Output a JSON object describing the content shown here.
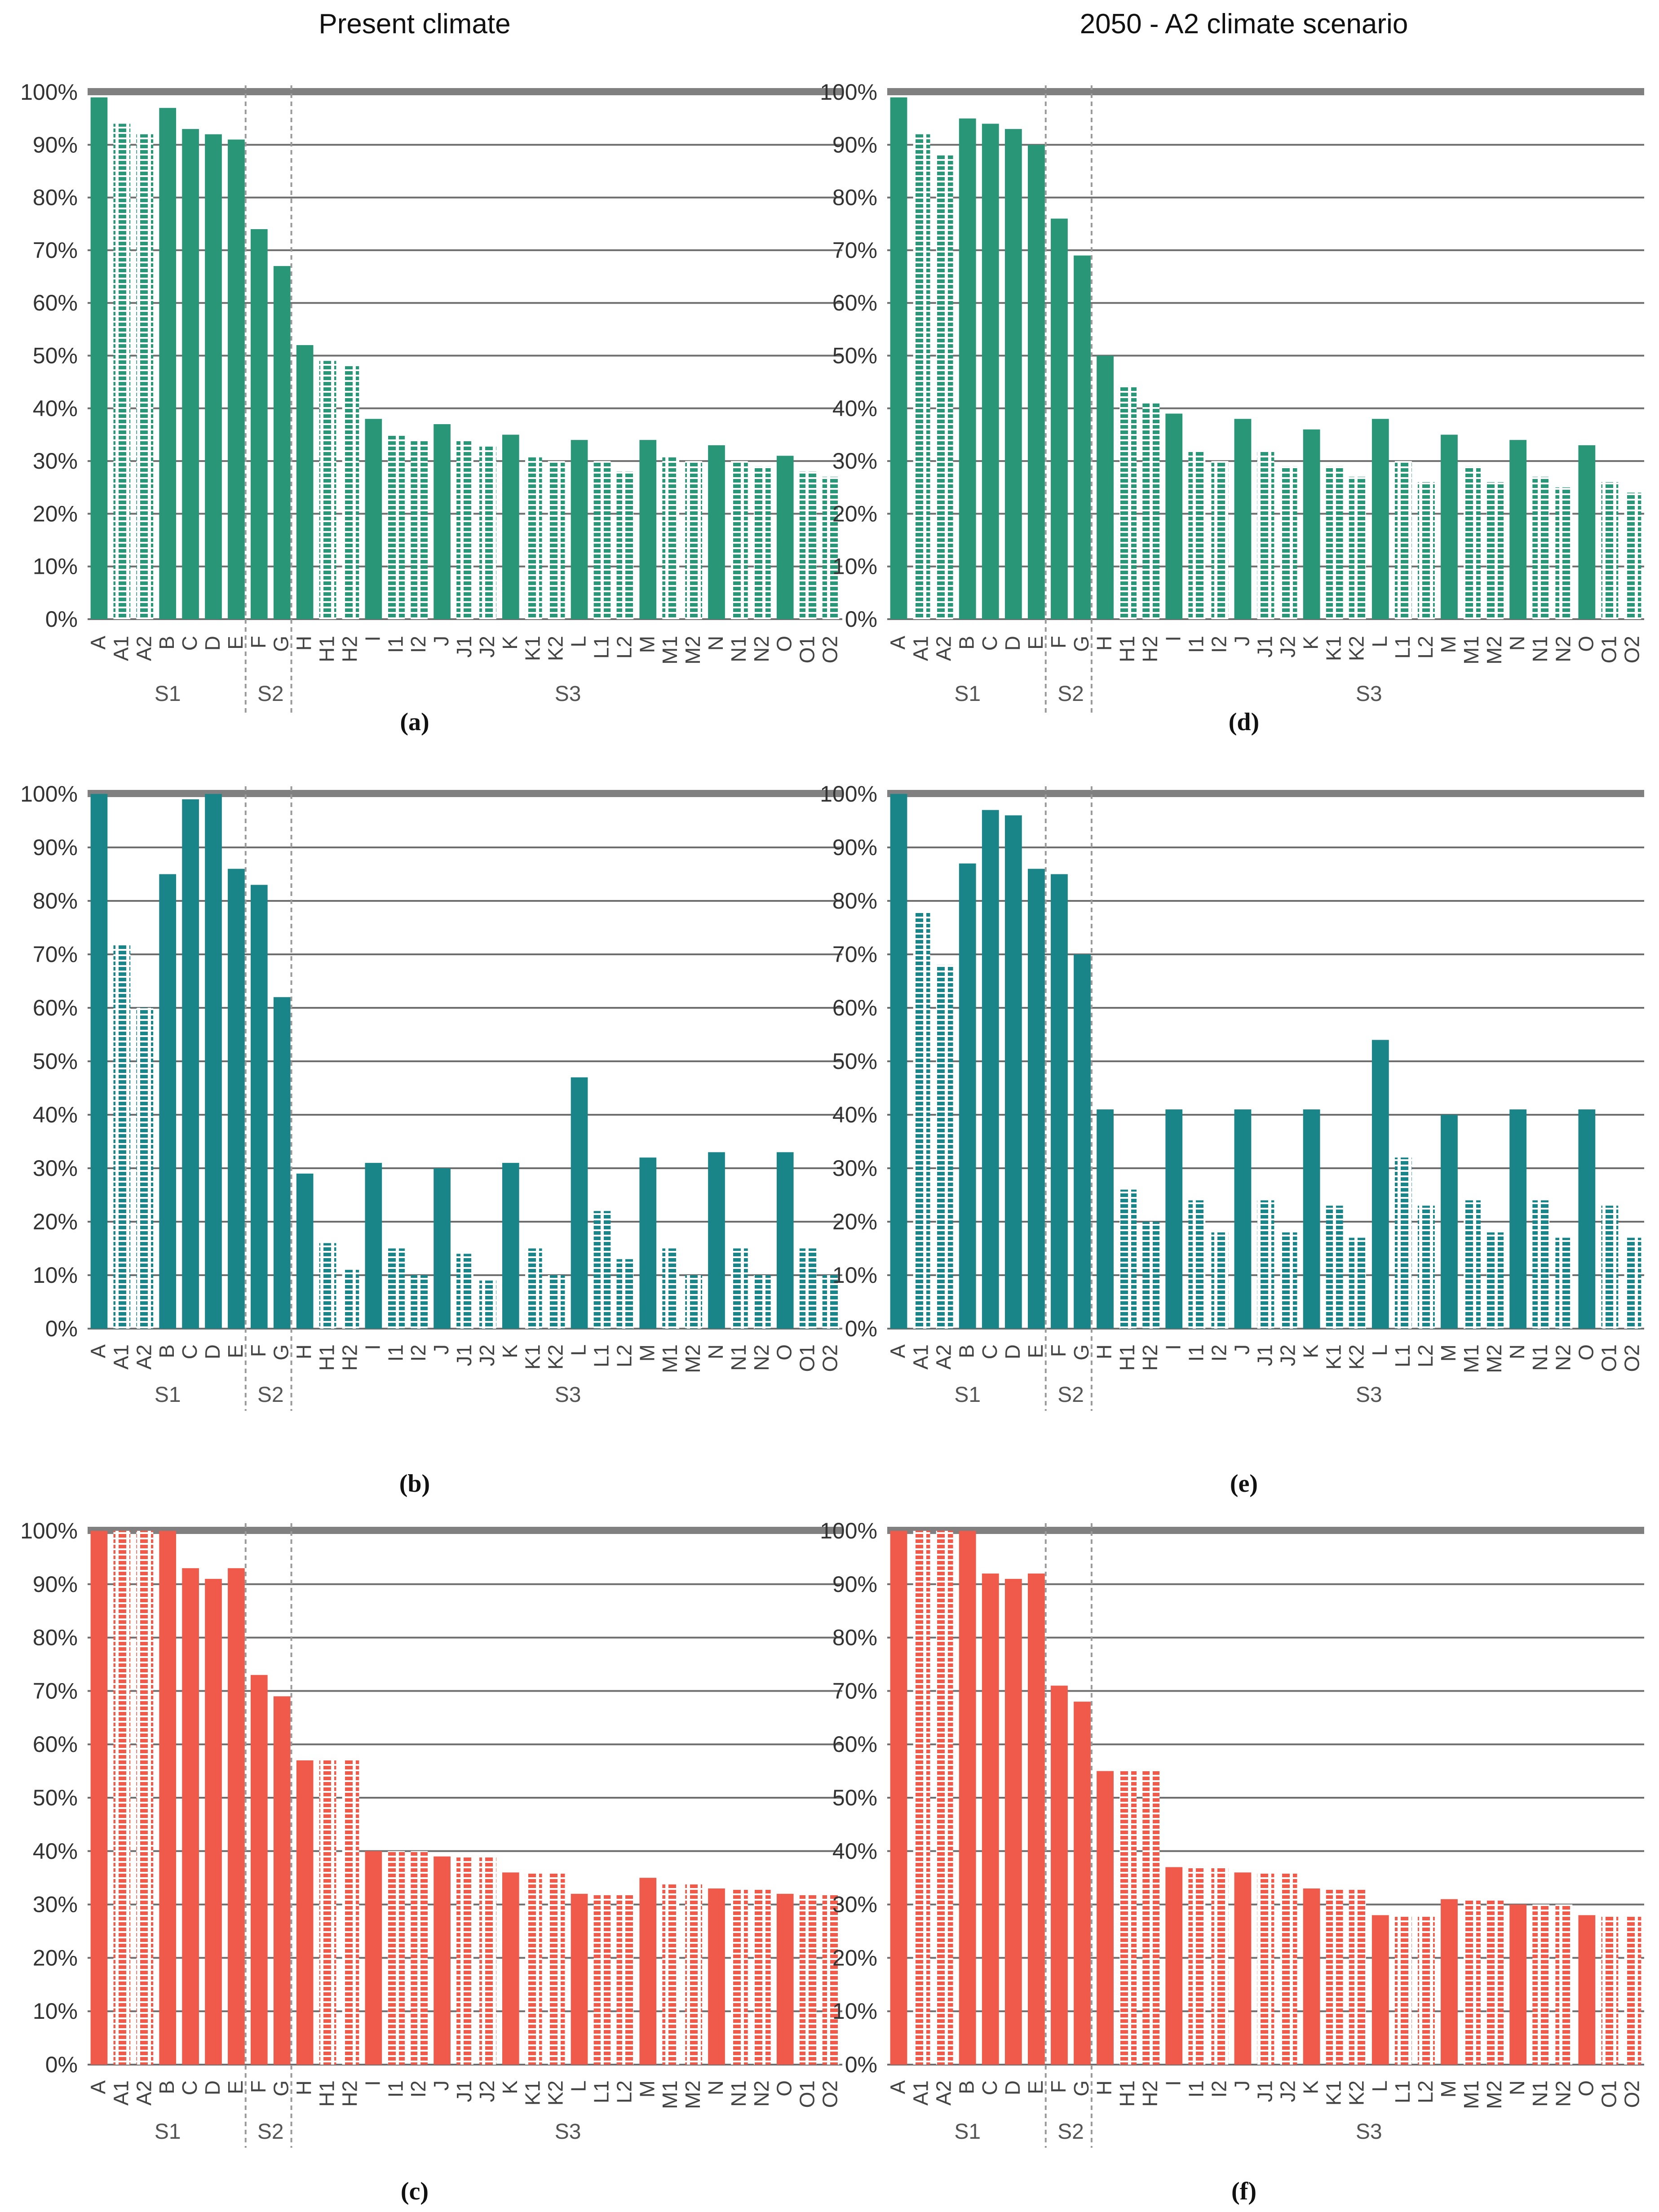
{
  "figure": {
    "column_titles": [
      "Present climate",
      "2050 - A2 climate scenario"
    ]
  },
  "categories": [
    "A",
    "A1",
    "A2",
    "B",
    "C",
    "D",
    "E",
    "F",
    "G",
    "H",
    "H1",
    "H2",
    "I",
    "I1",
    "I2",
    "J",
    "J1",
    "J2",
    "K",
    "K1",
    "K2",
    "L",
    "L1",
    "L2",
    "M",
    "M1",
    "M2",
    "N",
    "N1",
    "N2",
    "O",
    "O1",
    "O2"
  ],
  "dashed_categories": [
    "A1",
    "A2",
    "H1",
    "H2",
    "I1",
    "I2",
    "J1",
    "J2",
    "K1",
    "K2",
    "L1",
    "L2",
    "M1",
    "M2",
    "N1",
    "N2",
    "O1",
    "O2"
  ],
  "groups": [
    {
      "label": "S1",
      "from": "A",
      "to": "E"
    },
    {
      "label": "S2",
      "from": "F",
      "to": "G"
    },
    {
      "label": "S3",
      "from": "H",
      "to": "O2"
    }
  ],
  "colors": {
    "green": "#2a9678",
    "teal": "#1a8589",
    "red": "#ef5a4a",
    "grid": "#6e6e6e",
    "top_band": "#808080",
    "separator": "#9a9a9a"
  },
  "chart_data": [
    {
      "id": "a",
      "label": "(a)",
      "type": "bar",
      "color": "green",
      "ylim": [
        0,
        100
      ],
      "yticks": [
        "0%",
        "10%",
        "20%",
        "30%",
        "40%",
        "50%",
        "60%",
        "70%",
        "80%",
        "90%",
        "100%"
      ],
      "values": [
        99,
        94,
        92,
        97,
        93,
        92,
        91,
        74,
        67,
        52,
        49,
        48,
        38,
        35,
        34,
        37,
        34,
        33,
        35,
        31,
        30,
        34,
        30,
        28,
        34,
        31,
        30,
        33,
        30,
        29,
        31,
        28,
        27
      ]
    },
    {
      "id": "b",
      "label": "(b)",
      "type": "bar",
      "color": "teal",
      "ylim": [
        0,
        100
      ],
      "yticks": [
        "0%",
        "10%",
        "20%",
        "30%",
        "40%",
        "50%",
        "60%",
        "70%",
        "80%",
        "90%",
        "100%"
      ],
      "values": [
        100,
        72,
        60,
        85,
        99,
        100,
        86,
        83,
        62,
        29,
        16,
        11,
        31,
        15,
        10,
        30,
        14,
        9,
        31,
        15,
        10,
        47,
        22,
        13,
        32,
        15,
        10,
        33,
        15,
        10,
        33,
        15,
        10
      ]
    },
    {
      "id": "c",
      "label": "(c)",
      "type": "bar",
      "color": "red",
      "ylim": [
        0,
        100
      ],
      "yticks": [
        "0%",
        "10%",
        "20%",
        "30%",
        "40%",
        "50%",
        "60%",
        "70%",
        "80%",
        "90%",
        "100%"
      ],
      "values": [
        100,
        100,
        100,
        100,
        93,
        91,
        93,
        73,
        69,
        57,
        57,
        57,
        40,
        40,
        40,
        39,
        39,
        39,
        36,
        36,
        36,
        32,
        32,
        32,
        35,
        34,
        34,
        33,
        33,
        33,
        32,
        32,
        32
      ]
    },
    {
      "id": "d",
      "label": "(d)",
      "type": "bar",
      "color": "green",
      "ylim": [
        0,
        100
      ],
      "yticks": [
        "0%",
        "10%",
        "20%",
        "30%",
        "40%",
        "50%",
        "60%",
        "70%",
        "80%",
        "90%",
        "100%"
      ],
      "values": [
        99,
        92,
        88,
        95,
        94,
        93,
        90,
        76,
        69,
        50,
        44,
        41,
        39,
        32,
        30,
        38,
        32,
        29,
        36,
        29,
        27,
        38,
        30,
        26,
        35,
        29,
        26,
        34,
        27,
        25,
        33,
        26,
        24
      ]
    },
    {
      "id": "e",
      "label": "(e)",
      "type": "bar",
      "color": "teal",
      "ylim": [
        0,
        100
      ],
      "yticks": [
        "0%",
        "10%",
        "20%",
        "30%",
        "40%",
        "50%",
        "60%",
        "70%",
        "80%",
        "90%",
        "100%"
      ],
      "values": [
        100,
        78,
        68,
        87,
        97,
        96,
        86,
        85,
        70,
        41,
        26,
        20,
        41,
        24,
        18,
        41,
        24,
        18,
        41,
        23,
        17,
        54,
        32,
        23,
        40,
        24,
        18,
        41,
        24,
        17,
        41,
        23,
        17
      ]
    },
    {
      "id": "f",
      "label": "(f)",
      "type": "bar",
      "color": "red",
      "ylim": [
        0,
        100
      ],
      "yticks": [
        "0%",
        "10%",
        "20%",
        "30%",
        "40%",
        "50%",
        "60%",
        "70%",
        "80%",
        "90%",
        "100%"
      ],
      "values": [
        100,
        100,
        100,
        100,
        92,
        91,
        92,
        71,
        68,
        55,
        55,
        55,
        37,
        37,
        37,
        36,
        36,
        36,
        33,
        33,
        33,
        28,
        28,
        28,
        31,
        31,
        31,
        30,
        30,
        30,
        28,
        28,
        28
      ]
    }
  ]
}
